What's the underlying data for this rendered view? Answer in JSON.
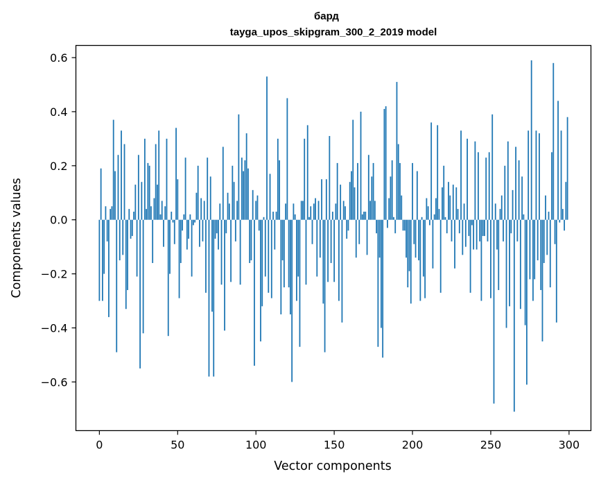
{
  "chart_data": {
    "type": "bar",
    "title": "бард",
    "subtitle": "tayga_upos_skipgram_300_2_2019 model",
    "xlabel": "Vector components",
    "ylabel": "Components values",
    "xlim": [
      -15,
      314
    ],
    "ylim": [
      -0.78,
      0.645
    ],
    "xticks": [
      0,
      50,
      100,
      150,
      200,
      250,
      300
    ],
    "xtick_labels": [
      "0",
      "50",
      "100",
      "150",
      "200",
      "250",
      "300"
    ],
    "yticks": [
      -0.6,
      -0.4,
      -0.2,
      0.0,
      0.2,
      0.4,
      0.6
    ],
    "ytick_labels": [
      "−0.6",
      "−0.4",
      "−0.2",
      "0.0",
      "0.2",
      "0.4",
      "0.6"
    ],
    "bar_color": "#1f77b4",
    "grid": false,
    "x": "indices 0..299",
    "values": [
      -0.3,
      0.19,
      -0.3,
      -0.2,
      0.05,
      -0.08,
      -0.36,
      0.04,
      0.05,
      0.37,
      0.18,
      -0.49,
      0.24,
      -0.15,
      0.33,
      -0.13,
      0.28,
      -0.33,
      -0.26,
      0.04,
      -0.07,
      -0.06,
      0.03,
      0.13,
      -0.21,
      0.24,
      -0.55,
      0.14,
      -0.42,
      0.3,
      0.04,
      0.21,
      0.2,
      0.05,
      -0.16,
      0.08,
      0.28,
      0.13,
      0.33,
      0.02,
      0.07,
      -0.1,
      0.05,
      0.3,
      -0.43,
      -0.2,
      0.03,
      -0.01,
      -0.09,
      0.34,
      0.15,
      -0.29,
      -0.16,
      -0.04,
      0.02,
      0.23,
      -0.11,
      -0.07,
      0.02,
      -0.21,
      -0.02,
      -0.01,
      0.1,
      0.2,
      -0.1,
      0.08,
      -0.08,
      0.07,
      -0.27,
      0.23,
      -0.58,
      0.16,
      -0.34,
      -0.58,
      -0.07,
      -0.05,
      -0.11,
      0.06,
      -0.24,
      0.27,
      -0.41,
      -0.05,
      0.1,
      0.06,
      -0.23,
      0.2,
      0.14,
      -0.08,
      0.07,
      0.39,
      -0.24,
      0.23,
      0.18,
      0.22,
      0.32,
      0.19,
      -0.16,
      -0.15,
      0.11,
      -0.54,
      0.07,
      0.09,
      -0.04,
      -0.45,
      -0.32,
      0.01,
      -0.21,
      0.53,
      -0.27,
      0.17,
      -0.29,
      0.03,
      -0.11,
      0.03,
      0.3,
      0.22,
      -0.35,
      -0.15,
      -0.25,
      0.06,
      0.45,
      -0.25,
      -0.35,
      -0.6,
      0.06,
      0.02,
      -0.3,
      -0.21,
      -0.47,
      0.07,
      0.07,
      0.3,
      -0.24,
      0.35,
      0.01,
      0.05,
      -0.09,
      0.06,
      0.08,
      -0.21,
      0.07,
      -0.14,
      0.15,
      -0.31,
      -0.49,
      0.15,
      -0.23,
      0.31,
      -0.16,
      0.03,
      -0.23,
      0.06,
      0.21,
      -0.3,
      0.13,
      -0.38,
      0.07,
      0.05,
      -0.07,
      -0.04,
      0.14,
      0.18,
      0.37,
      0.12,
      -0.14,
      0.21,
      -0.09,
      0.4,
      0.02,
      0.03,
      0.03,
      -0.13,
      0.24,
      0.07,
      0.16,
      0.21,
      0.07,
      -0.05,
      -0.47,
      -0.14,
      -0.4,
      -0.51,
      0.41,
      0.42,
      -0.03,
      0.08,
      0.16,
      0.22,
      0.01,
      -0.05,
      0.51,
      0.28,
      0.21,
      0.09,
      -0.04,
      -0.04,
      -0.14,
      -0.25,
      -0.19,
      -0.31,
      0.21,
      -0.09,
      -0.14,
      0.18,
      -0.15,
      -0.3,
      0.01,
      -0.21,
      -0.29,
      0.08,
      0.05,
      -0.02,
      0.36,
      -0.18,
      0.02,
      0.08,
      0.35,
      0.04,
      -0.27,
      0.12,
      0.2,
      0.01,
      -0.05,
      0.14,
      0.09,
      -0.08,
      0.13,
      -0.18,
      0.12,
      0.04,
      -0.05,
      0.33,
      -0.13,
      0.06,
      -0.1,
      0.3,
      -0.06,
      -0.27,
      -0.02,
      -0.11,
      0.29,
      -0.11,
      0.25,
      -0.08,
      -0.3,
      -0.06,
      -0.06,
      0.23,
      -0.08,
      0.25,
      -0.29,
      0.39,
      -0.68,
      0.06,
      -0.11,
      -0.26,
      0.04,
      0.09,
      -0.08,
      0.2,
      -0.4,
      0.29,
      -0.32,
      -0.05,
      0.11,
      -0.71,
      0.27,
      -0.08,
      0.22,
      -0.33,
      0.16,
      0.02,
      -0.39,
      -0.61,
      0.33,
      -0.22,
      0.59,
      -0.3,
      -0.22,
      0.33,
      -0.15,
      0.32,
      -0.26,
      -0.45,
      -0.16,
      0.09,
      -0.13,
      0.03,
      -0.25,
      0.25,
      0.58,
      -0.09,
      -0.38,
      0.44,
      -0.01,
      0.33,
      0.04,
      -0.04,
      0.14,
      0.38
    ]
  }
}
